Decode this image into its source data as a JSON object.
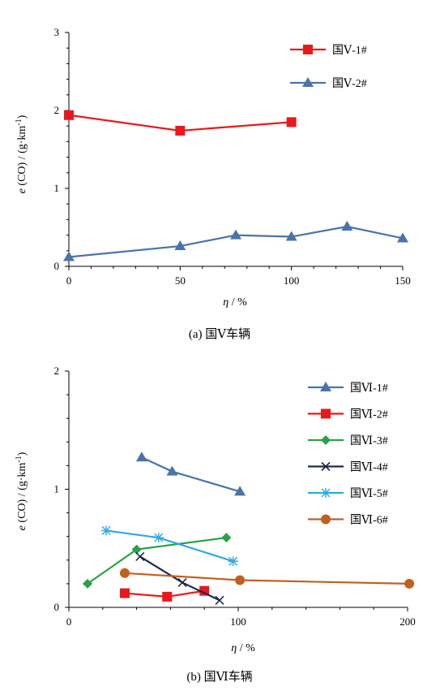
{
  "chart_data": [
    {
      "type": "line",
      "caption": "(a)  国Ⅴ车辆",
      "ylabel_var": "e",
      "ylabel_rest": " (CO) / (g·km",
      "ylabel_exp": "-1",
      "ylabel_end": ")",
      "xlabel_var": "η",
      "xlabel_rest": " / %",
      "xlim": [
        0,
        150
      ],
      "ylim": [
        0,
        3
      ],
      "xticks": [
        0,
        50,
        100,
        150
      ],
      "yticks": [
        0,
        1,
        2,
        3
      ],
      "legend_position": "top-right",
      "series": [
        {
          "name": "国Ⅴ-1#",
          "color": "#e8191c",
          "marker": "square",
          "x": [
            0,
            50,
            100
          ],
          "y": [
            1.94,
            1.74,
            1.85
          ]
        },
        {
          "name": "国Ⅴ-2#",
          "color": "#4a73aa",
          "marker": "triangle",
          "x": [
            0,
            50,
            75,
            100,
            125,
            150
          ],
          "y": [
            0.12,
            0.26,
            0.4,
            0.38,
            0.51,
            0.36
          ]
        }
      ]
    },
    {
      "type": "line",
      "caption": "(b)  国Ⅵ车辆",
      "ylabel_var": "e",
      "ylabel_rest": " (CO) / (g·km",
      "ylabel_exp": "-1",
      "ylabel_end": ")",
      "xlabel_var": "η",
      "xlabel_rest": " / %",
      "xlim": [
        0,
        200
      ],
      "ylim": [
        0,
        2
      ],
      "xticks": [
        0,
        100,
        200
      ],
      "yticks": [
        0,
        1,
        2
      ],
      "legend_position": "top-right",
      "series": [
        {
          "name": "国Ⅵ-1#",
          "color": "#4a73aa",
          "marker": "triangle",
          "x": [
            43,
            61,
            101
          ],
          "y": [
            1.27,
            1.15,
            0.98
          ]
        },
        {
          "name": "国Ⅵ-2#",
          "color": "#e8191c",
          "marker": "square",
          "x": [
            33,
            58,
            80
          ],
          "y": [
            0.12,
            0.09,
            0.14
          ]
        },
        {
          "name": "国Ⅵ-3#",
          "color": "#2ca048",
          "marker": "diamond",
          "x": [
            11,
            40,
            93
          ],
          "y": [
            0.2,
            0.49,
            0.59
          ]
        },
        {
          "name": "国Ⅵ-4#",
          "color": "#1b2a4a",
          "marker": "x",
          "x": [
            42,
            67,
            89
          ],
          "y": [
            0.43,
            0.21,
            0.06
          ]
        },
        {
          "name": "国Ⅵ-5#",
          "color": "#2ea9e0",
          "marker": "star",
          "x": [
            22,
            53,
            97
          ],
          "y": [
            0.65,
            0.59,
            0.39
          ]
        },
        {
          "name": "国Ⅵ-6#",
          "color": "#c06020",
          "marker": "circle",
          "x": [
            33,
            101,
            201
          ],
          "y": [
            0.29,
            0.23,
            0.2
          ]
        }
      ]
    }
  ]
}
